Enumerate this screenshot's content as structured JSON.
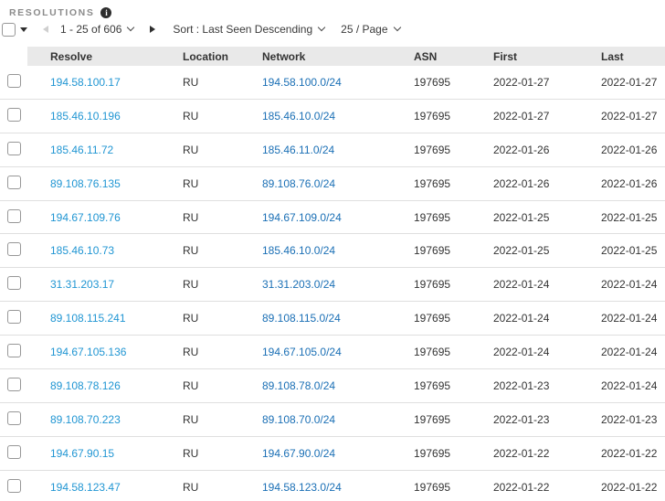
{
  "page": {
    "title": "RESOLUTIONS"
  },
  "icons": {
    "info_glyph": "i"
  },
  "toolbar": {
    "page_range": "1 - 25 of 606",
    "sort_label": "Sort : Last Seen Descending",
    "per_page_label": "25 / Page"
  },
  "table": {
    "columns": [
      "Resolve",
      "Location",
      "Network",
      "ASN",
      "First",
      "Last"
    ],
    "rows": [
      {
        "resolve": "194.58.100.17",
        "location": "RU",
        "network": "194.58.100.0/24",
        "asn": "197695",
        "first": "2022-01-27",
        "last": "2022-01-27"
      },
      {
        "resolve": "185.46.10.196",
        "location": "RU",
        "network": "185.46.10.0/24",
        "asn": "197695",
        "first": "2022-01-27",
        "last": "2022-01-27"
      },
      {
        "resolve": "185.46.11.72",
        "location": "RU",
        "network": "185.46.11.0/24",
        "asn": "197695",
        "first": "2022-01-26",
        "last": "2022-01-26"
      },
      {
        "resolve": "89.108.76.135",
        "location": "RU",
        "network": "89.108.76.0/24",
        "asn": "197695",
        "first": "2022-01-26",
        "last": "2022-01-26"
      },
      {
        "resolve": "194.67.109.76",
        "location": "RU",
        "network": "194.67.109.0/24",
        "asn": "197695",
        "first": "2022-01-25",
        "last": "2022-01-25"
      },
      {
        "resolve": "185.46.10.73",
        "location": "RU",
        "network": "185.46.10.0/24",
        "asn": "197695",
        "first": "2022-01-25",
        "last": "2022-01-25"
      },
      {
        "resolve": "31.31.203.17",
        "location": "RU",
        "network": "31.31.203.0/24",
        "asn": "197695",
        "first": "2022-01-24",
        "last": "2022-01-24"
      },
      {
        "resolve": "89.108.115.241",
        "location": "RU",
        "network": "89.108.115.0/24",
        "asn": "197695",
        "first": "2022-01-24",
        "last": "2022-01-24"
      },
      {
        "resolve": "194.67.105.136",
        "location": "RU",
        "network": "194.67.105.0/24",
        "asn": "197695",
        "first": "2022-01-24",
        "last": "2022-01-24"
      },
      {
        "resolve": "89.108.78.126",
        "location": "RU",
        "network": "89.108.78.0/24",
        "asn": "197695",
        "first": "2022-01-23",
        "last": "2022-01-24"
      },
      {
        "resolve": "89.108.70.223",
        "location": "RU",
        "network": "89.108.70.0/24",
        "asn": "197695",
        "first": "2022-01-23",
        "last": "2022-01-23"
      },
      {
        "resolve": "194.67.90.15",
        "location": "RU",
        "network": "194.67.90.0/24",
        "asn": "197695",
        "first": "2022-01-22",
        "last": "2022-01-22"
      },
      {
        "resolve": "194.58.123.47",
        "location": "RU",
        "network": "194.58.123.0/24",
        "asn": "197695",
        "first": "2022-01-22",
        "last": "2022-01-22"
      }
    ]
  },
  "colors": {
    "resolve_link": "#2196d3",
    "network_link": "#1a6fb5",
    "header_bg": "#e9e9e9",
    "row_border": "#dfdfdf",
    "text": "#333333",
    "title": "#8b8b8b"
  }
}
